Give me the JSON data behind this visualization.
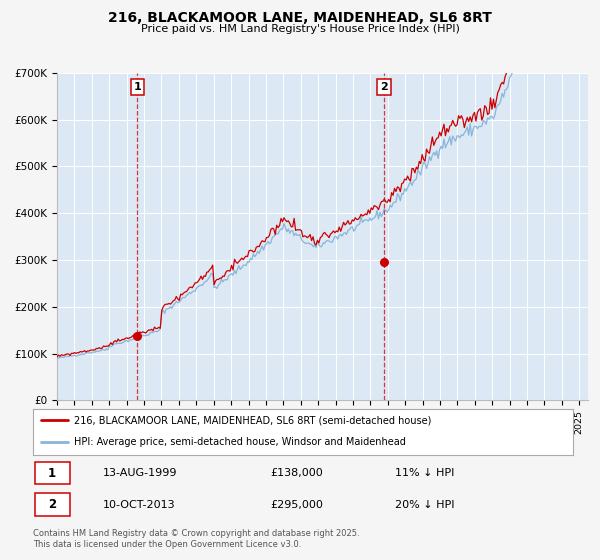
{
  "title": "216, BLACKAMOOR LANE, MAIDENHEAD, SL6 8RT",
  "subtitle": "Price paid vs. HM Land Registry's House Price Index (HPI)",
  "red_label": "216, BLACKAMOOR LANE, MAIDENHEAD, SL6 8RT (semi-detached house)",
  "blue_label": "HPI: Average price, semi-detached house, Windsor and Maidenhead",
  "annotation1_date": "13-AUG-1999",
  "annotation1_price": "£138,000",
  "annotation1_hpi": "11% ↓ HPI",
  "annotation2_date": "10-OCT-2013",
  "annotation2_price": "£295,000",
  "annotation2_hpi": "20% ↓ HPI",
  "footer": "Contains HM Land Registry data © Crown copyright and database right 2025.\nThis data is licensed under the Open Government Licence v3.0.",
  "background_color": "#dce9f5",
  "outer_bg_color": "#f5f5f5",
  "red_color": "#cc0000",
  "blue_color": "#8ab4d8",
  "ylim": [
    0,
    700000
  ],
  "yticks": [
    0,
    100000,
    200000,
    300000,
    400000,
    500000,
    600000,
    700000
  ],
  "ytick_labels": [
    "£0",
    "£100K",
    "£200K",
    "£300K",
    "£400K",
    "£500K",
    "£600K",
    "£700K"
  ],
  "vline1_year": 1999.62,
  "vline2_year": 2013.78,
  "point1_year": 1999.62,
  "point1_value": 138000,
  "point2_year": 2013.78,
  "point2_value": 295000,
  "xmin": 1995.0,
  "xmax": 2025.5
}
